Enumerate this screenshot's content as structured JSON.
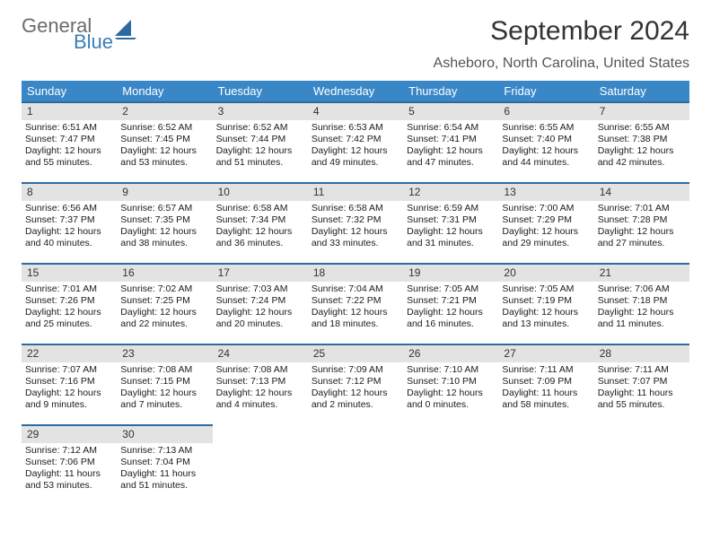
{
  "brand": {
    "part1": "General",
    "part2": "Blue"
  },
  "title": "September 2024",
  "subtitle": "Asheboro, North Carolina, United States",
  "colors": {
    "header_bg": "#3a87c7",
    "row_border": "#2d6aa0",
    "daynum_bg": "#e3e3e3"
  },
  "weekdays": [
    "Sunday",
    "Monday",
    "Tuesday",
    "Wednesday",
    "Thursday",
    "Friday",
    "Saturday"
  ],
  "days": [
    {
      "n": "1",
      "sr": "Sunrise: 6:51 AM",
      "ss": "Sunset: 7:47 PM",
      "d1": "Daylight: 12 hours",
      "d2": "and 55 minutes."
    },
    {
      "n": "2",
      "sr": "Sunrise: 6:52 AM",
      "ss": "Sunset: 7:45 PM",
      "d1": "Daylight: 12 hours",
      "d2": "and 53 minutes."
    },
    {
      "n": "3",
      "sr": "Sunrise: 6:52 AM",
      "ss": "Sunset: 7:44 PM",
      "d1": "Daylight: 12 hours",
      "d2": "and 51 minutes."
    },
    {
      "n": "4",
      "sr": "Sunrise: 6:53 AM",
      "ss": "Sunset: 7:42 PM",
      "d1": "Daylight: 12 hours",
      "d2": "and 49 minutes."
    },
    {
      "n": "5",
      "sr": "Sunrise: 6:54 AM",
      "ss": "Sunset: 7:41 PM",
      "d1": "Daylight: 12 hours",
      "d2": "and 47 minutes."
    },
    {
      "n": "6",
      "sr": "Sunrise: 6:55 AM",
      "ss": "Sunset: 7:40 PM",
      "d1": "Daylight: 12 hours",
      "d2": "and 44 minutes."
    },
    {
      "n": "7",
      "sr": "Sunrise: 6:55 AM",
      "ss": "Sunset: 7:38 PM",
      "d1": "Daylight: 12 hours",
      "d2": "and 42 minutes."
    },
    {
      "n": "8",
      "sr": "Sunrise: 6:56 AM",
      "ss": "Sunset: 7:37 PM",
      "d1": "Daylight: 12 hours",
      "d2": "and 40 minutes."
    },
    {
      "n": "9",
      "sr": "Sunrise: 6:57 AM",
      "ss": "Sunset: 7:35 PM",
      "d1": "Daylight: 12 hours",
      "d2": "and 38 minutes."
    },
    {
      "n": "10",
      "sr": "Sunrise: 6:58 AM",
      "ss": "Sunset: 7:34 PM",
      "d1": "Daylight: 12 hours",
      "d2": "and 36 minutes."
    },
    {
      "n": "11",
      "sr": "Sunrise: 6:58 AM",
      "ss": "Sunset: 7:32 PM",
      "d1": "Daylight: 12 hours",
      "d2": "and 33 minutes."
    },
    {
      "n": "12",
      "sr": "Sunrise: 6:59 AM",
      "ss": "Sunset: 7:31 PM",
      "d1": "Daylight: 12 hours",
      "d2": "and 31 minutes."
    },
    {
      "n": "13",
      "sr": "Sunrise: 7:00 AM",
      "ss": "Sunset: 7:29 PM",
      "d1": "Daylight: 12 hours",
      "d2": "and 29 minutes."
    },
    {
      "n": "14",
      "sr": "Sunrise: 7:01 AM",
      "ss": "Sunset: 7:28 PM",
      "d1": "Daylight: 12 hours",
      "d2": "and 27 minutes."
    },
    {
      "n": "15",
      "sr": "Sunrise: 7:01 AM",
      "ss": "Sunset: 7:26 PM",
      "d1": "Daylight: 12 hours",
      "d2": "and 25 minutes."
    },
    {
      "n": "16",
      "sr": "Sunrise: 7:02 AM",
      "ss": "Sunset: 7:25 PM",
      "d1": "Daylight: 12 hours",
      "d2": "and 22 minutes."
    },
    {
      "n": "17",
      "sr": "Sunrise: 7:03 AM",
      "ss": "Sunset: 7:24 PM",
      "d1": "Daylight: 12 hours",
      "d2": "and 20 minutes."
    },
    {
      "n": "18",
      "sr": "Sunrise: 7:04 AM",
      "ss": "Sunset: 7:22 PM",
      "d1": "Daylight: 12 hours",
      "d2": "and 18 minutes."
    },
    {
      "n": "19",
      "sr": "Sunrise: 7:05 AM",
      "ss": "Sunset: 7:21 PM",
      "d1": "Daylight: 12 hours",
      "d2": "and 16 minutes."
    },
    {
      "n": "20",
      "sr": "Sunrise: 7:05 AM",
      "ss": "Sunset: 7:19 PM",
      "d1": "Daylight: 12 hours",
      "d2": "and 13 minutes."
    },
    {
      "n": "21",
      "sr": "Sunrise: 7:06 AM",
      "ss": "Sunset: 7:18 PM",
      "d1": "Daylight: 12 hours",
      "d2": "and 11 minutes."
    },
    {
      "n": "22",
      "sr": "Sunrise: 7:07 AM",
      "ss": "Sunset: 7:16 PM",
      "d1": "Daylight: 12 hours",
      "d2": "and 9 minutes."
    },
    {
      "n": "23",
      "sr": "Sunrise: 7:08 AM",
      "ss": "Sunset: 7:15 PM",
      "d1": "Daylight: 12 hours",
      "d2": "and 7 minutes."
    },
    {
      "n": "24",
      "sr": "Sunrise: 7:08 AM",
      "ss": "Sunset: 7:13 PM",
      "d1": "Daylight: 12 hours",
      "d2": "and 4 minutes."
    },
    {
      "n": "25",
      "sr": "Sunrise: 7:09 AM",
      "ss": "Sunset: 7:12 PM",
      "d1": "Daylight: 12 hours",
      "d2": "and 2 minutes."
    },
    {
      "n": "26",
      "sr": "Sunrise: 7:10 AM",
      "ss": "Sunset: 7:10 PM",
      "d1": "Daylight: 12 hours",
      "d2": "and 0 minutes."
    },
    {
      "n": "27",
      "sr": "Sunrise: 7:11 AM",
      "ss": "Sunset: 7:09 PM",
      "d1": "Daylight: 11 hours",
      "d2": "and 58 minutes."
    },
    {
      "n": "28",
      "sr": "Sunrise: 7:11 AM",
      "ss": "Sunset: 7:07 PM",
      "d1": "Daylight: 11 hours",
      "d2": "and 55 minutes."
    },
    {
      "n": "29",
      "sr": "Sunrise: 7:12 AM",
      "ss": "Sunset: 7:06 PM",
      "d1": "Daylight: 11 hours",
      "d2": "and 53 minutes."
    },
    {
      "n": "30",
      "sr": "Sunrise: 7:13 AM",
      "ss": "Sunset: 7:04 PM",
      "d1": "Daylight: 11 hours",
      "d2": "and 51 minutes."
    }
  ]
}
